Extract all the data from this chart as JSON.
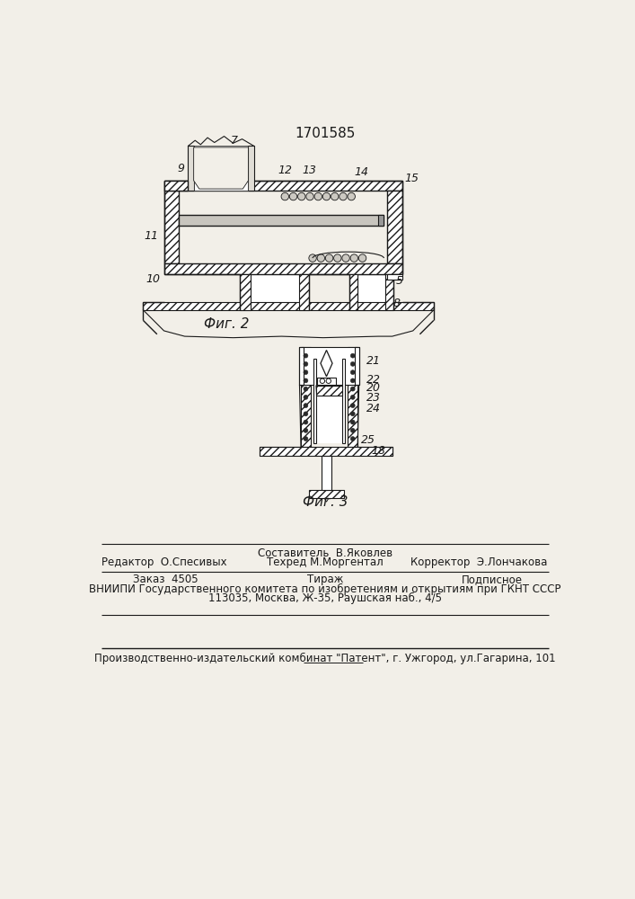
{
  "patent_number": "1701585",
  "fig2_label": "Фиг. 2",
  "fig3_label": "Фиг. 3",
  "bg_color": "#f2efe8",
  "line_color": "#1a1a1a",
  "footer": {
    "line1_left": "Редактор  О.Спесивых",
    "line1_center_top": "Составитель  В.Яковлев",
    "line1_center_bot": "Техред М.Моргентал",
    "line1_right": "Корректор  Э.Лончакова",
    "line2_a": "Заказ  4505",
    "line2_b": "Тираж",
    "line2_c": "Подписное",
    "line3": "ВНИИПИ Государственного комитета по изобретениям и открытиям при ГКНТ СССР",
    "line4": "113035, Москва, Ж-35, Раушская наб., 4/5",
    "line5": "Производственно-издательский комбинат \"Патент\", г. Ужгород, ул.Гагарина, 101"
  }
}
